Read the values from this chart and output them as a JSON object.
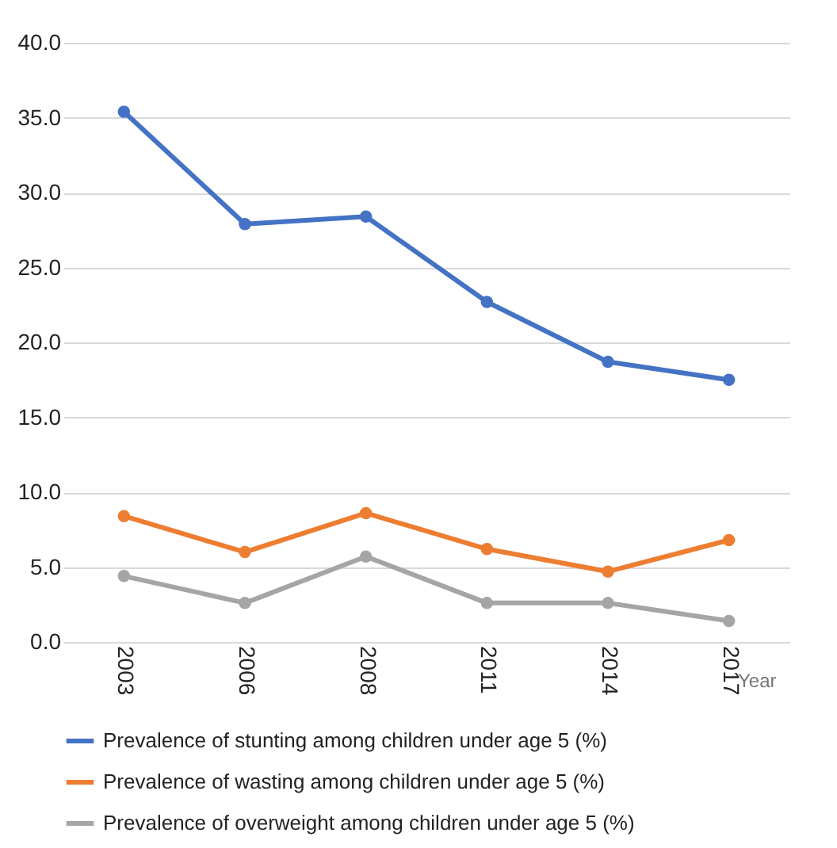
{
  "chart_data": {
    "type": "line",
    "xlabel": "Year",
    "categories": [
      "2003",
      "2006",
      "2008",
      "2011",
      "2014",
      "2017"
    ],
    "series": [
      {
        "name": "Prevalence of stunting among children under age 5 (%)",
        "color": "#4472c4",
        "values": [
          35.4,
          27.9,
          28.4,
          22.7,
          18.7,
          17.5
        ]
      },
      {
        "name": "Prevalence of wasting among children under age 5 (%)",
        "color": "#ed7d31",
        "values": [
          8.4,
          6.0,
          8.6,
          6.2,
          4.7,
          6.8
        ]
      },
      {
        "name": "Prevalence of overweight among children under age 5 (%)",
        "color": "#a5a5a5",
        "values": [
          4.4,
          2.6,
          5.7,
          2.6,
          2.6,
          1.4
        ]
      }
    ],
    "ylim": [
      0,
      40
    ],
    "yticks": [
      {
        "value": 0,
        "label": "0.0"
      },
      {
        "value": 5,
        "label": "5.0"
      },
      {
        "value": 10,
        "label": "10.0"
      },
      {
        "value": 15,
        "label": "15.0"
      },
      {
        "value": 20,
        "label": "20.0"
      },
      {
        "value": 25,
        "label": "25.0"
      },
      {
        "value": 30,
        "label": "30.0"
      },
      {
        "value": 35,
        "label": "35.0"
      },
      {
        "value": 40,
        "label": "40.0"
      }
    ],
    "grid": "y",
    "legend": "bottom",
    "marker": "circle",
    "line_style": "solid"
  }
}
